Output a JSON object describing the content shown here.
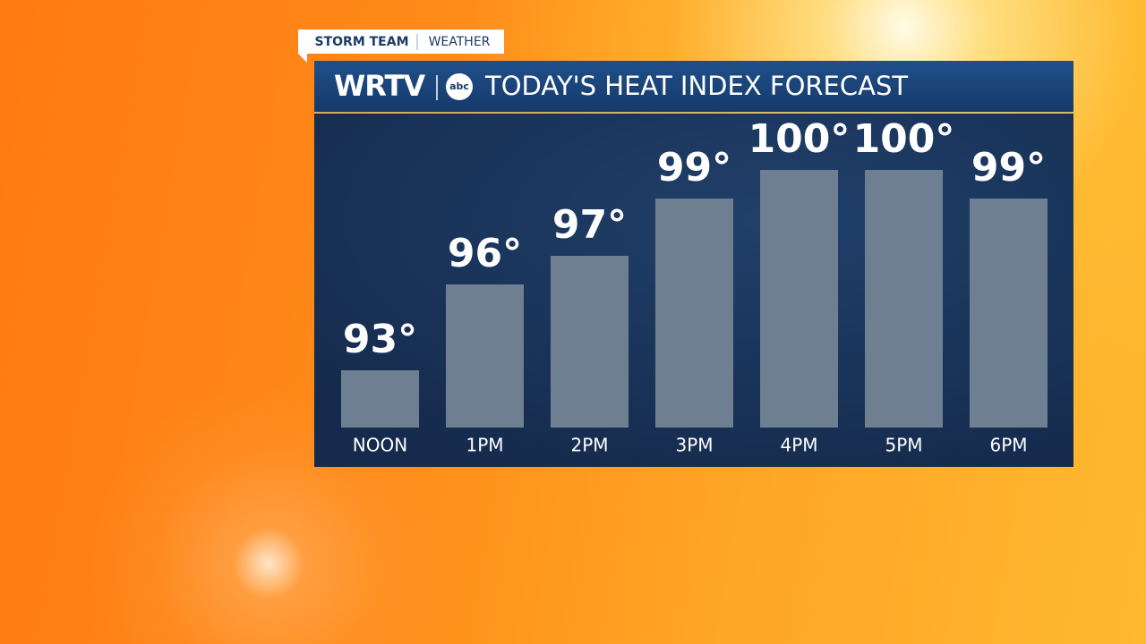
{
  "header": {
    "tag_left": "STORM TEAM",
    "tag_right": "WEATHER",
    "station": "WRTV",
    "network": "abc"
  },
  "chart_data": {
    "type": "bar",
    "title": "TODAY'S HEAT INDEX FORECAST",
    "categories": [
      "NOON",
      "1PM",
      "2PM",
      "3PM",
      "4PM",
      "5PM",
      "6PM"
    ],
    "values": [
      93,
      96,
      97,
      99,
      100,
      100,
      99
    ],
    "value_labels": [
      "93°",
      "96°",
      "97°",
      "99°",
      "100°",
      "100°",
      "99°"
    ],
    "color": "#6f7f92",
    "ylim": [
      91,
      100
    ]
  }
}
